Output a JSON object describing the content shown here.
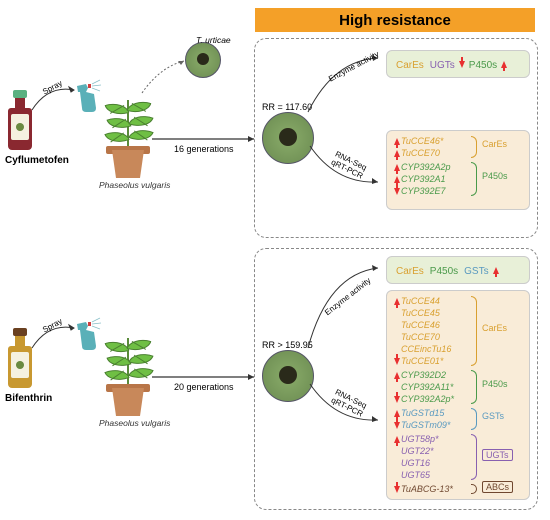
{
  "header": {
    "title": "High resistance",
    "bg": "#f4a028"
  },
  "colors": {
    "cares": "#d9a030",
    "p450s": "#4a9a4a",
    "gsts": "#5a9ac0",
    "ugts": "#8860b0",
    "abcs": "#704830",
    "red_arrow": "#e83030",
    "bottle1_body": "#8a2830",
    "bottle1_cap": "#5ab080",
    "bottle2_body": "#c89830",
    "bottle2_cap": "#6a4020"
  },
  "exp1": {
    "chemical": "Cyflumetofen",
    "plant": "Phaseolus vulgaris",
    "mite": "T. urticae",
    "generations": "16 generations",
    "rr": "RR = 117.60",
    "spray": "Spray",
    "methods": {
      "enzyme": "Enzyme activity",
      "rnaqpcr": "RNA-Seq\nqRT-PCR"
    },
    "enzyme_results": [
      {
        "name": "CarEs",
        "color": "#d9a030",
        "arrow": ""
      },
      {
        "name": "UGTs",
        "color": "#8860b0",
        "arrow": "down"
      },
      {
        "name": "P450s",
        "color": "#4a9a4a",
        "arrow": "up"
      }
    ],
    "gene_groups": [
      {
        "label": "CarEs",
        "color": "#d9a030",
        "genes": [
          {
            "name": "TuCCE46*",
            "arrow": "up"
          },
          {
            "name": "TuCCE70",
            "arrow": "up"
          }
        ]
      },
      {
        "label": "P450s",
        "color": "#4a9a4a",
        "genes": [
          {
            "name": "CYP392A2p",
            "arrow": "up"
          },
          {
            "name": "CYP392A1",
            "arrow": "up"
          },
          {
            "name": "CYP392E7",
            "arrow": "down"
          }
        ]
      }
    ]
  },
  "exp2": {
    "chemical": "Bifenthrin",
    "plant": "Phaseolus vulgaris",
    "generations": "20 generations",
    "rr": "RR > 159.95",
    "spray": "Spray",
    "methods": {
      "enzyme": "Enzyme activity",
      "rnaqpcr": "RNA-Seq\nqRT-PCR"
    },
    "enzyme_results": [
      {
        "name": "CarEs",
        "color": "#d9a030",
        "arrow": ""
      },
      {
        "name": "P450s",
        "color": "#4a9a4a",
        "arrow": ""
      },
      {
        "name": "GSTs",
        "color": "#5a9ac0",
        "arrow": "up"
      }
    ],
    "gene_groups": [
      {
        "label": "CarEs",
        "color": "#d9a030",
        "genes": [
          {
            "name": "TuCCE44",
            "arrow": "up"
          },
          {
            "name": "TuCCE45",
            "arrow": ""
          },
          {
            "name": "TuCCE46",
            "arrow": ""
          },
          {
            "name": "TuCCE70",
            "arrow": ""
          },
          {
            "name": "CCEincTu16",
            "arrow": ""
          },
          {
            "name": "TuCCE01*",
            "arrow": "down"
          }
        ]
      },
      {
        "label": "P450s",
        "color": "#4a9a4a",
        "genes": [
          {
            "name": "CYP392D2",
            "arrow": "up"
          },
          {
            "name": "CYP392A11*",
            "arrow": ""
          },
          {
            "name": "CYP392A2p*",
            "arrow": "down"
          }
        ]
      },
      {
        "label": "GSTs",
        "color": "#5a9ac0",
        "genes": [
          {
            "name": "TuGSTd15",
            "arrow": "up"
          },
          {
            "name": "TuGSTm09*",
            "arrow": "down"
          }
        ]
      },
      {
        "label": "UGTs",
        "color": "#8860b0",
        "boxed": true,
        "genes": [
          {
            "name": "UGT58p*",
            "arrow": "up"
          },
          {
            "name": "UGT22*",
            "arrow": ""
          },
          {
            "name": "UGT16",
            "arrow": ""
          },
          {
            "name": "UGT65",
            "arrow": ""
          }
        ]
      },
      {
        "label": "ABCs",
        "color": "#704830",
        "boxed": true,
        "genes": [
          {
            "name": "TuABCG-13*",
            "arrow": "down"
          }
        ]
      }
    ]
  }
}
